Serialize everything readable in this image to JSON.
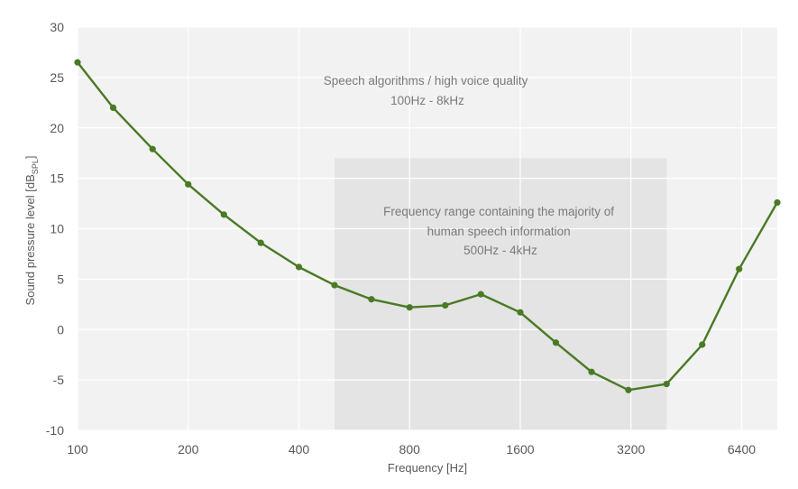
{
  "chart_data": {
    "type": "line",
    "title": "",
    "xlabel": "Frequency [Hz]",
    "ylabel": "Sound pressure level [dB",
    "ylabel_sub": "SPL",
    "ylabel_close": "]",
    "x_scale": "log2",
    "xlim": [
      100,
      8000
    ],
    "ylim": [
      -10,
      30
    ],
    "x_ticks": [
      100,
      200,
      400,
      800,
      1600,
      3200,
      6400
    ],
    "x_tick_labels": [
      "100",
      "200",
      "400",
      "800",
      "1600",
      "3200",
      "6400"
    ],
    "y_ticks": [
      -10,
      -5,
      0,
      5,
      10,
      15,
      20,
      25,
      30
    ],
    "y_tick_labels": [
      "-10",
      "-5",
      "0",
      "5",
      "10",
      "15",
      "20",
      "25",
      "30"
    ],
    "grid": true,
    "series": [
      {
        "color": "#4a7a24",
        "x": [
          100,
          125,
          160,
          200,
          250,
          315,
          400,
          500,
          630,
          800,
          1000,
          1250,
          1600,
          2000,
          2500,
          3150,
          4000,
          5000,
          6300,
          8000
        ],
        "y": [
          26.5,
          22.0,
          17.9,
          14.4,
          11.4,
          8.6,
          6.2,
          4.4,
          3.0,
          2.2,
          2.4,
          3.5,
          1.7,
          -1.3,
          -4.2,
          -6.0,
          -5.4,
          -1.5,
          6.0,
          12.6
        ]
      }
    ],
    "shaded_region": {
      "x": [
        500,
        4000
      ],
      "y": [
        -10,
        17
      ],
      "color": "#e4e4e4",
      "label_lines": [
        "Frequency range containing the majority of",
        "human speech information",
        "500Hz - 4kHz"
      ]
    },
    "annotations": [
      {
        "label_lines": [
          "Speech algorithms / high voice quality",
          "100Hz - 8kHz"
        ]
      }
    ],
    "colors": {
      "plot_background": "#f2f2f2",
      "gridline": "#ffffff",
      "text": "#595959"
    }
  }
}
